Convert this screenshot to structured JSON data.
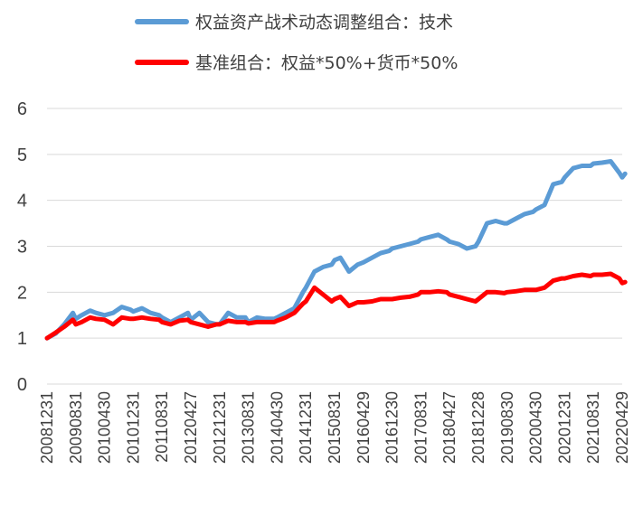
{
  "chart_data": {
    "type": "line",
    "title": "",
    "xlabel": "",
    "ylabel": "",
    "ylim": [
      0,
      6
    ],
    "yticks": [
      0,
      1,
      2,
      3,
      4,
      5,
      6
    ],
    "grid": "horizontal",
    "legend_position": "top",
    "x_tick_labels": [
      "20081231",
      "20090831",
      "20100430",
      "20101231",
      "20110831",
      "20120427",
      "20121231",
      "20130831",
      "20140430",
      "20141231",
      "20150831",
      "20160429",
      "20161230",
      "20170831",
      "20180427",
      "20181228",
      "20190830",
      "20200430",
      "20201231",
      "20210831",
      "20220429"
    ],
    "series": [
      {
        "name": "权益资产战术动态调整组合：技术",
        "color": "#5B9BD5",
        "x": [
          0,
          0.3,
          0.6,
          0.9,
          1.0,
          1.2,
          1.5,
          1.7,
          2.0,
          2.3,
          2.6,
          2.9,
          3.0,
          3.3,
          3.6,
          3.9,
          4.0,
          4.3,
          4.6,
          4.9,
          5.0,
          5.3,
          5.6,
          5.9,
          6.0,
          6.3,
          6.6,
          6.9,
          7.0,
          7.3,
          7.6,
          7.9,
          8.0,
          8.3,
          8.6,
          8.9,
          9.0,
          9.3,
          9.6,
          9.9,
          10.0,
          10.2,
          10.5,
          10.8,
          11.0,
          11.3,
          11.6,
          11.9,
          12.0,
          12.3,
          12.6,
          12.9,
          13.0,
          13.3,
          13.6,
          13.9,
          14.0,
          14.3,
          14.6,
          14.9,
          15.0,
          15.3,
          15.6,
          15.9,
          16.0,
          16.3,
          16.6,
          16.9,
          17.0,
          17.3,
          17.6,
          17.9,
          18.0,
          18.3,
          18.6,
          18.9,
          19.0,
          19.3,
          19.6,
          19.9,
          20.0,
          20.1
        ],
        "values": [
          1.0,
          1.1,
          1.3,
          1.55,
          1.42,
          1.5,
          1.6,
          1.55,
          1.5,
          1.55,
          1.68,
          1.62,
          1.58,
          1.65,
          1.55,
          1.5,
          1.45,
          1.35,
          1.45,
          1.55,
          1.4,
          1.55,
          1.35,
          1.3,
          1.3,
          1.55,
          1.45,
          1.45,
          1.35,
          1.45,
          1.42,
          1.42,
          1.45,
          1.55,
          1.65,
          2.0,
          2.1,
          2.45,
          2.55,
          2.6,
          2.7,
          2.75,
          2.45,
          2.6,
          2.65,
          2.75,
          2.85,
          2.9,
          2.95,
          3.0,
          3.05,
          3.1,
          3.15,
          3.2,
          3.25,
          3.15,
          3.1,
          3.05,
          2.95,
          3.0,
          3.1,
          3.5,
          3.55,
          3.5,
          3.5,
          3.6,
          3.7,
          3.75,
          3.8,
          3.9,
          4.35,
          4.4,
          4.5,
          4.7,
          4.75,
          4.75,
          4.8,
          4.82,
          4.85,
          4.6,
          4.5,
          4.58
        ]
      },
      {
        "name": "基准组合：权益*50%+货币*50%",
        "color": "#FF0000",
        "x": [
          0,
          0.3,
          0.6,
          0.9,
          1.0,
          1.2,
          1.5,
          1.7,
          2.0,
          2.3,
          2.6,
          2.9,
          3.0,
          3.3,
          3.6,
          3.9,
          4.0,
          4.3,
          4.6,
          4.9,
          5.0,
          5.3,
          5.6,
          5.9,
          6.0,
          6.3,
          6.6,
          6.9,
          7.0,
          7.3,
          7.6,
          7.9,
          8.0,
          8.3,
          8.6,
          8.9,
          9.0,
          9.3,
          9.6,
          9.9,
          10.0,
          10.2,
          10.5,
          10.8,
          11.0,
          11.3,
          11.6,
          11.9,
          12.0,
          12.3,
          12.6,
          12.9,
          13.0,
          13.3,
          13.6,
          13.9,
          14.0,
          14.3,
          14.6,
          14.9,
          15.0,
          15.3,
          15.6,
          15.9,
          16.0,
          16.3,
          16.6,
          16.9,
          17.0,
          17.3,
          17.6,
          17.9,
          18.0,
          18.3,
          18.6,
          18.9,
          19.0,
          19.3,
          19.6,
          19.9,
          20.0,
          20.1
        ],
        "values": [
          1.0,
          1.12,
          1.25,
          1.4,
          1.3,
          1.35,
          1.45,
          1.42,
          1.4,
          1.3,
          1.45,
          1.42,
          1.42,
          1.45,
          1.42,
          1.4,
          1.35,
          1.3,
          1.38,
          1.4,
          1.35,
          1.3,
          1.25,
          1.3,
          1.3,
          1.38,
          1.35,
          1.35,
          1.32,
          1.35,
          1.35,
          1.35,
          1.38,
          1.45,
          1.55,
          1.75,
          1.8,
          2.1,
          1.95,
          1.8,
          1.85,
          1.9,
          1.7,
          1.78,
          1.78,
          1.8,
          1.85,
          1.85,
          1.85,
          1.88,
          1.9,
          1.95,
          2.0,
          2.0,
          2.02,
          2.0,
          1.95,
          1.9,
          1.85,
          1.8,
          1.85,
          2.0,
          2.0,
          1.98,
          2.0,
          2.02,
          2.05,
          2.05,
          2.05,
          2.1,
          2.25,
          2.3,
          2.3,
          2.35,
          2.38,
          2.35,
          2.38,
          2.38,
          2.4,
          2.3,
          2.2,
          2.22
        ]
      }
    ]
  }
}
